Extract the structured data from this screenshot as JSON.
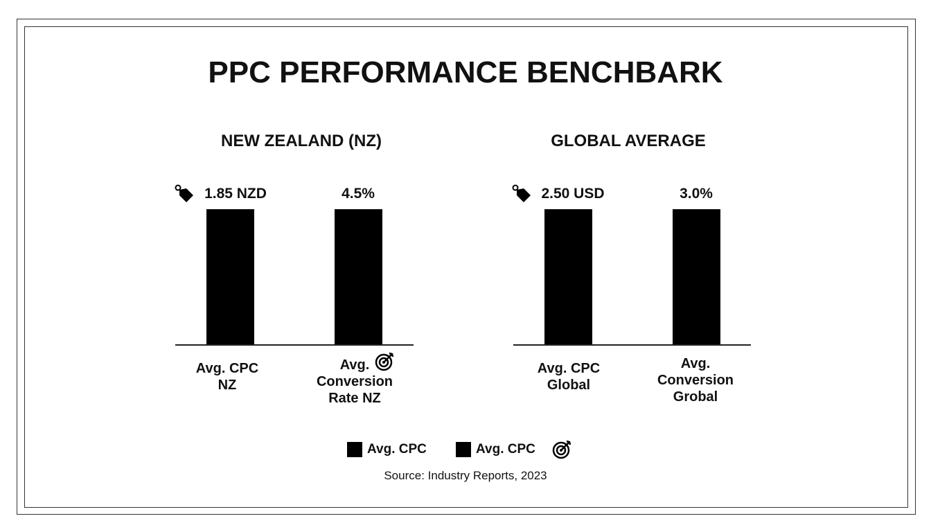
{
  "chart_data": [
    {
      "type": "bar",
      "title": "NEW ZEALAND (NZ)",
      "categories": [
        "Avg. CPC NZ",
        "Avg. Conversion Rate NZ"
      ],
      "values": [
        1.85,
        4.5
      ],
      "data_labels": [
        "1.85 NZD",
        "4.5%"
      ]
    },
    {
      "type": "bar",
      "title": "GLOBAL AVERAGE",
      "categories": [
        "Avg. CPC Global",
        "Avg. Conversion Grobal"
      ],
      "values": [
        2.5,
        3.0
      ],
      "data_labels": [
        "2.50 USD",
        "3.0%"
      ]
    }
  ],
  "main_title": "PPC PERFORMANCE BENCHBARK",
  "legend": [
    "Avg. CPC",
    "Avg. CPC"
  ],
  "source": "Source: Industry Reports, 2023",
  "cat_lines": [
    [
      "Avg. CPC",
      "NZ"
    ],
    [
      "Avg.",
      "Conversion",
      "Rate NZ"
    ],
    [
      "Avg. CPC",
      "Global"
    ],
    [
      "Avg.",
      "Conversion",
      "Grobal"
    ]
  ],
  "icons": [
    "price-tag-icon",
    "target-icon"
  ],
  "colors": {
    "bar": "#000000"
  }
}
